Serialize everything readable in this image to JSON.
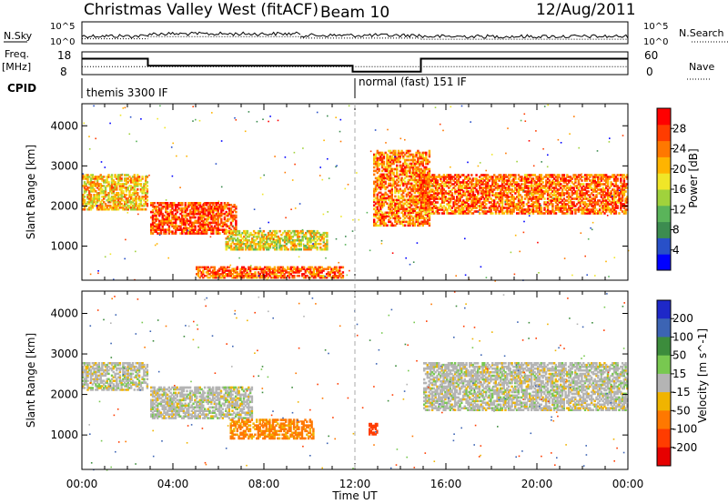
{
  "header": {
    "station": "Christmas Valley West (fitACF)",
    "beam": "Beam 10",
    "date": "12/Aug/2011"
  },
  "side_labels": {
    "nsky": "N.Sky",
    "nsearch": "N.Search",
    "freq": "Freq.",
    "mhz": "[MHz]",
    "nave": "Nave",
    "cpid": "CPID"
  },
  "noise_panel": {
    "left_ticks": [
      "10^5",
      "10^0"
    ],
    "right_ticks": [
      "10^5",
      "10^0"
    ],
    "segments": [
      {
        "start_h": 0.0,
        "end_h": 2.9,
        "level": 0.35
      },
      {
        "start_h": 2.9,
        "end_h": 9.6,
        "level": 0.45
      },
      {
        "start_h": 9.6,
        "end_h": 14.9,
        "level": 0.38
      },
      {
        "start_h": 14.9,
        "end_h": 24.0,
        "level": 0.33
      }
    ]
  },
  "freq_panel": {
    "left_ticks": [
      "18",
      "8"
    ],
    "right_ticks": [
      "60",
      "0"
    ],
    "freq_ylim": [
      8,
      18
    ],
    "nave_ylim": [
      0,
      60
    ],
    "freq_segments": [
      {
        "start_h": 0.0,
        "end_h": 2.9,
        "value": 15.0
      },
      {
        "start_h": 2.9,
        "end_h": 11.9,
        "value": 11.9
      },
      {
        "start_h": 11.9,
        "end_h": 14.9,
        "value": 9.3
      },
      {
        "start_h": 14.9,
        "end_h": 24.0,
        "value": 15.0
      }
    ],
    "nave_segments": [
      {
        "start_h": 0.0,
        "end_h": 11.9,
        "value": 21
      },
      {
        "start_h": 11.9,
        "end_h": 24.0,
        "value": 21
      }
    ]
  },
  "cpid_segments": [
    {
      "start_h": 0.0,
      "label": "themis 3300 IF"
    },
    {
      "start_h": 11.9,
      "label": "normal (fast) 151 IF"
    }
  ],
  "chart_data": [
    {
      "type": "heatmap",
      "ylabel": "Slant Range [km]",
      "xlabel": "Time UT",
      "xlim": [
        0,
        24
      ],
      "ylim": [
        150,
        4550
      ],
      "x_ticks": [
        "00:00",
        "04:00",
        "08:00",
        "12:00",
        "16:00",
        "20:00",
        "00:00"
      ],
      "y_ticks": [
        1000,
        2000,
        3000,
        4000
      ],
      "colorbar": {
        "label": "Power [dB]",
        "ticks": [
          4,
          8,
          12,
          16,
          20,
          24,
          28
        ],
        "colors": [
          "#0000ff",
          "#2850c8",
          "#3c8c50",
          "#5ab45a",
          "#a0d23c",
          "#f0e628",
          "#ffb400",
          "#ff7800",
          "#ff3c00",
          "#ff0000"
        ]
      },
      "echo_regions": [
        {
          "name": "morning-band",
          "t_start": 0.0,
          "t_end": 2.9,
          "r_min": 1900,
          "r_max": 2800,
          "value": 20
        },
        {
          "name": "lower-band",
          "t_start": 3.0,
          "t_end": 6.8,
          "r_min": 1300,
          "r_max": 2100,
          "value": 27
        },
        {
          "name": "mid-band",
          "t_start": 6.3,
          "t_end": 10.8,
          "r_min": 900,
          "r_max": 1400,
          "value": 18
        },
        {
          "name": "near-range",
          "t_start": 5.0,
          "t_end": 11.5,
          "r_min": 200,
          "r_max": 500,
          "value": 26
        },
        {
          "name": "evening-streak",
          "t_start": 12.8,
          "t_end": 15.3,
          "r_min": 1500,
          "r_max": 3400,
          "value": 24
        },
        {
          "name": "evening-band",
          "t_start": 14.8,
          "t_end": 24.0,
          "r_min": 1800,
          "r_max": 2800,
          "value": 25
        }
      ]
    },
    {
      "type": "heatmap",
      "ylabel": "Slant Range [km]",
      "xlabel": "Time UT",
      "xlim": [
        0,
        24
      ],
      "ylim": [
        150,
        4550
      ],
      "x_ticks": [
        "00:00",
        "04:00",
        "08:00",
        "12:00",
        "16:00",
        "20:00",
        "00:00"
      ],
      "y_ticks": [
        1000,
        2000,
        3000,
        4000
      ],
      "colorbar": {
        "label": "Velocity [m s^-1]",
        "ticks": [
          200,
          100,
          50,
          15,
          -15,
          -50,
          -100,
          -200
        ],
        "colors": [
          "#1e28c8",
          "#3c64b4",
          "#3c8c3c",
          "#78c850",
          "#b4b4b4",
          "#f0b400",
          "#ff7800",
          "#ff3c00",
          "#e60000"
        ]
      },
      "echo_regions": [
        {
          "name": "ground-scatter-morning",
          "t_start": 0.0,
          "t_end": 2.9,
          "r_min": 2100,
          "r_max": 2800,
          "value": 0
        },
        {
          "name": "ground-scatter-lower",
          "t_start": 3.0,
          "t_end": 7.5,
          "r_min": 1400,
          "r_max": 2200,
          "value": 0
        },
        {
          "name": "negative-flow",
          "t_start": 6.5,
          "t_end": 10.2,
          "r_min": 900,
          "r_max": 1400,
          "value": -60
        },
        {
          "name": "orange-blob",
          "t_start": 12.6,
          "t_end": 13.0,
          "r_min": 1000,
          "r_max": 1300,
          "value": -120
        },
        {
          "name": "ground-scatter-evening",
          "t_start": 15.0,
          "t_end": 24.0,
          "r_min": 1600,
          "r_max": 2800,
          "value": 0
        }
      ]
    }
  ],
  "colors": {
    "axis": "#000000",
    "dashed_noon": "#aaaaaa"
  }
}
